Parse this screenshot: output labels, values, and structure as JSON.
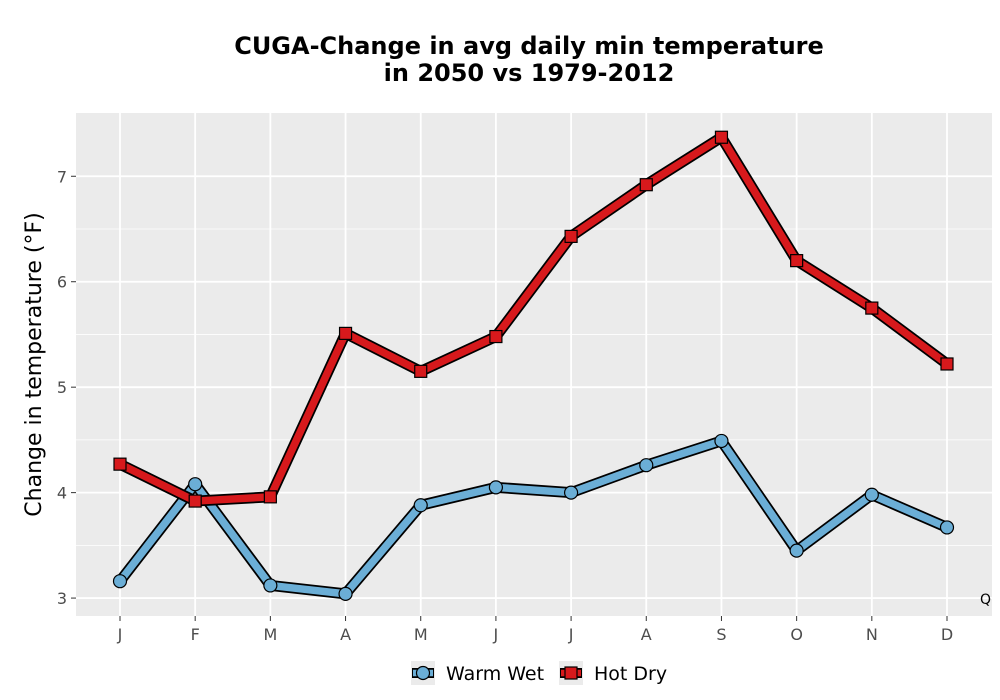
{
  "chart_data": {
    "type": "line",
    "title_lines": [
      "CUGA-Change in avg daily min temperature",
      "in 2050 vs 1979-2012"
    ],
    "ylabel": "Change in temperature (°F)",
    "xlabel": "",
    "categories": [
      "J",
      "F",
      "M",
      "A",
      "M",
      "J",
      "J",
      "A",
      "S",
      "O",
      "N",
      "D"
    ],
    "ylim": [
      2.83,
      7.6
    ],
    "yticks": [
      3,
      4,
      5,
      6,
      7
    ],
    "grid": true,
    "legend_position": "bottom",
    "corner_note": "Q",
    "series": [
      {
        "name": "Warm Wet",
        "color": "#6baed6",
        "marker": "circle",
        "values": [
          3.16,
          4.08,
          3.12,
          3.04,
          3.88,
          4.05,
          4.0,
          4.26,
          4.49,
          3.45,
          3.98,
          3.67
        ]
      },
      {
        "name": "Hot Dry",
        "color": "#d7191c",
        "marker": "square",
        "values": [
          4.27,
          3.92,
          3.96,
          5.51,
          5.15,
          5.48,
          6.43,
          6.92,
          7.37,
          6.2,
          5.75,
          5.22
        ]
      }
    ]
  }
}
